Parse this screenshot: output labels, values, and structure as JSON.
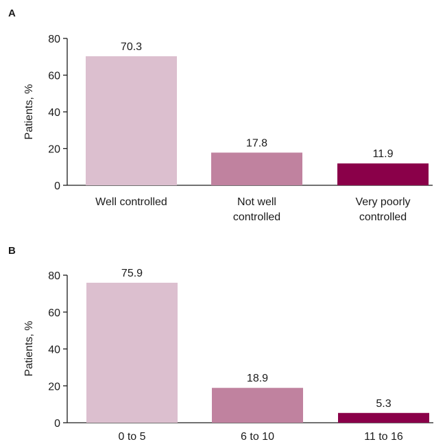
{
  "panels": [
    {
      "letter": "A"
    },
    {
      "letter": "B"
    }
  ],
  "chart_data": [
    {
      "type": "bar",
      "panel": "A",
      "ylabel": "Patients, %",
      "ylim": [
        0,
        80
      ],
      "yticks": [
        0,
        20,
        40,
        60,
        80
      ],
      "categories": [
        [
          "Well controlled"
        ],
        [
          "Not well",
          "controlled"
        ],
        [
          "Very poorly",
          "controlled"
        ]
      ],
      "values": [
        70.3,
        17.8,
        11.9
      ],
      "value_labels": [
        "70.3",
        "17.8",
        "11.9"
      ],
      "colors": [
        "#dcbfcf",
        "#c0829f",
        "#8a0049"
      ],
      "grid": false,
      "legend": "none"
    },
    {
      "type": "bar",
      "panel": "B",
      "ylabel": "Patients, %",
      "ylim": [
        0,
        80
      ],
      "yticks": [
        0,
        20,
        40,
        60,
        80
      ],
      "categories": [
        [
          "0 to 5"
        ],
        [
          "6 to 10"
        ],
        [
          "11 to 16"
        ]
      ],
      "values": [
        75.9,
        18.9,
        5.3
      ],
      "value_labels": [
        "75.9",
        "18.9",
        "5.3"
      ],
      "colors": [
        "#dcbfcf",
        "#c0829f",
        "#8a0049"
      ],
      "grid": false,
      "legend": "none"
    }
  ]
}
